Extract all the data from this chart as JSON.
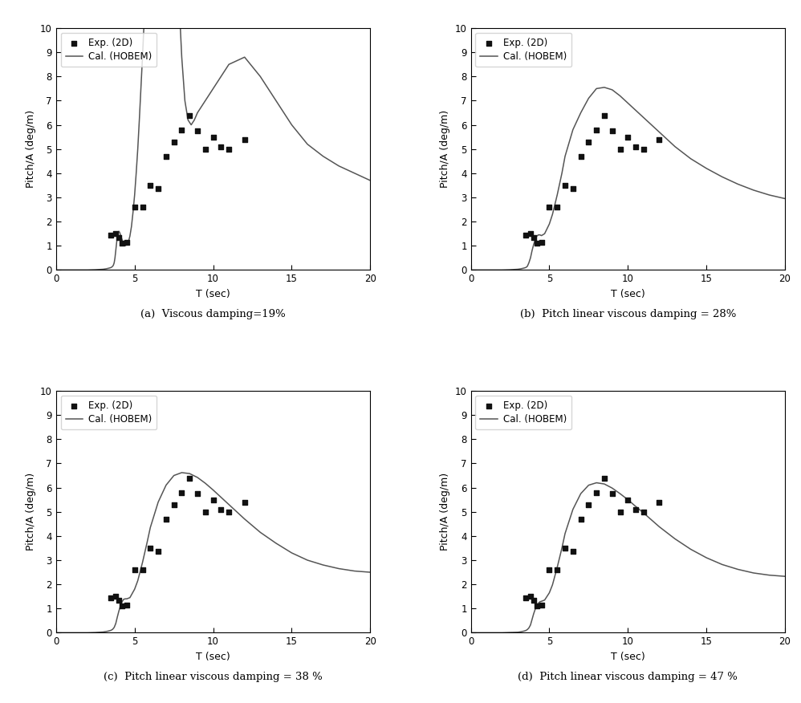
{
  "exp_x": [
    3.5,
    3.8,
    4.0,
    4.2,
    4.5,
    5.0,
    5.5,
    6.0,
    6.5,
    7.0,
    7.5,
    8.0,
    8.5,
    9.0,
    9.5,
    10.0,
    10.5,
    11.0,
    12.0
  ],
  "exp_y": [
    1.45,
    1.5,
    1.35,
    1.1,
    1.15,
    2.6,
    2.6,
    3.5,
    3.35,
    4.7,
    5.3,
    5.8,
    6.4,
    5.75,
    5.0,
    5.5,
    5.1,
    5.0,
    5.4
  ],
  "line_a_x": [
    0.1,
    0.5,
    1.0,
    1.5,
    2.0,
    2.5,
    3.0,
    3.2,
    3.4,
    3.5,
    3.6,
    3.65,
    3.7,
    3.75,
    3.8,
    3.85,
    3.9,
    3.95,
    4.0,
    4.05,
    4.1,
    4.15,
    4.2,
    4.3,
    4.4,
    4.5,
    4.6,
    4.7,
    4.8,
    4.9,
    5.0,
    5.1,
    5.2,
    5.3,
    5.4,
    5.5,
    5.6,
    5.7,
    5.8,
    5.9,
    6.0,
    6.2,
    6.4,
    6.6,
    6.8,
    7.0,
    7.2,
    7.4,
    7.6,
    7.8,
    8.0,
    8.2,
    8.4,
    8.6,
    8.8,
    9.0,
    10.0,
    11.0,
    12.0,
    13.0,
    14.0,
    15.0,
    16.0,
    17.0,
    18.0,
    19.0,
    20.0
  ],
  "line_a_y": [
    0.0,
    0.0,
    0.0,
    0.0,
    0.0,
    0.01,
    0.03,
    0.05,
    0.08,
    0.1,
    0.15,
    0.2,
    0.3,
    0.5,
    0.8,
    1.1,
    1.4,
    1.55,
    1.6,
    1.55,
    1.45,
    1.35,
    1.25,
    1.1,
    1.0,
    1.05,
    1.15,
    1.4,
    1.8,
    2.4,
    3.1,
    4.0,
    5.0,
    6.2,
    7.5,
    8.8,
    10.2,
    11.5,
    13.0,
    14.5,
    16.0,
    18.0,
    19.5,
    20.5,
    20.8,
    20.5,
    19.5,
    17.5,
    14.5,
    11.5,
    8.8,
    7.0,
    6.2,
    6.0,
    6.2,
    6.5,
    7.5,
    8.5,
    8.8,
    8.0,
    7.0,
    6.0,
    5.2,
    4.7,
    4.3,
    4.0,
    3.7
  ],
  "line_b_x": [
    0.1,
    0.5,
    1.0,
    1.5,
    2.0,
    2.5,
    3.0,
    3.2,
    3.4,
    3.5,
    3.6,
    3.7,
    3.8,
    3.9,
    4.0,
    4.1,
    4.2,
    4.3,
    4.4,
    4.5,
    4.7,
    5.0,
    5.2,
    5.5,
    5.8,
    6.0,
    6.5,
    7.0,
    7.5,
    8.0,
    8.5,
    9.0,
    9.5,
    10.0,
    10.5,
    11.0,
    12.0,
    13.0,
    14.0,
    15.0,
    16.0,
    17.0,
    18.0,
    19.0,
    20.0
  ],
  "line_b_y": [
    0.0,
    0.0,
    0.0,
    0.0,
    0.0,
    0.01,
    0.03,
    0.05,
    0.08,
    0.1,
    0.15,
    0.3,
    0.5,
    0.8,
    1.05,
    1.25,
    1.4,
    1.45,
    1.45,
    1.42,
    1.5,
    1.9,
    2.3,
    3.1,
    4.0,
    4.7,
    5.8,
    6.5,
    7.1,
    7.5,
    7.55,
    7.45,
    7.2,
    6.9,
    6.6,
    6.3,
    5.7,
    5.1,
    4.6,
    4.2,
    3.85,
    3.55,
    3.3,
    3.1,
    2.95
  ],
  "line_c_x": [
    0.1,
    0.5,
    1.0,
    1.5,
    2.0,
    2.5,
    3.0,
    3.2,
    3.4,
    3.5,
    3.6,
    3.7,
    3.8,
    3.9,
    4.0,
    4.1,
    4.2,
    4.3,
    4.4,
    4.5,
    4.7,
    5.0,
    5.2,
    5.5,
    5.8,
    6.0,
    6.5,
    7.0,
    7.5,
    8.0,
    8.5,
    9.0,
    9.5,
    10.0,
    10.5,
    11.0,
    12.0,
    13.0,
    14.0,
    15.0,
    16.0,
    17.0,
    18.0,
    19.0,
    20.0
  ],
  "line_c_y": [
    0.0,
    0.0,
    0.0,
    0.0,
    0.0,
    0.01,
    0.03,
    0.05,
    0.08,
    0.1,
    0.14,
    0.22,
    0.38,
    0.65,
    0.9,
    1.1,
    1.28,
    1.38,
    1.4,
    1.4,
    1.45,
    1.8,
    2.15,
    2.9,
    3.75,
    4.35,
    5.4,
    6.1,
    6.5,
    6.62,
    6.58,
    6.42,
    6.18,
    5.9,
    5.6,
    5.3,
    4.7,
    4.15,
    3.7,
    3.3,
    3.0,
    2.8,
    2.65,
    2.55,
    2.5
  ],
  "line_d_x": [
    0.1,
    0.5,
    1.0,
    1.5,
    2.0,
    2.5,
    3.0,
    3.2,
    3.4,
    3.5,
    3.6,
    3.7,
    3.8,
    3.9,
    4.0,
    4.1,
    4.2,
    4.3,
    4.4,
    4.5,
    4.7,
    5.0,
    5.2,
    5.5,
    5.8,
    6.0,
    6.5,
    7.0,
    7.5,
    8.0,
    8.5,
    9.0,
    9.5,
    10.0,
    10.5,
    11.0,
    12.0,
    13.0,
    14.0,
    15.0,
    16.0,
    17.0,
    18.0,
    19.0,
    20.0
  ],
  "line_d_y": [
    0.0,
    0.0,
    0.0,
    0.0,
    0.0,
    0.01,
    0.02,
    0.04,
    0.07,
    0.09,
    0.13,
    0.2,
    0.32,
    0.55,
    0.78,
    0.97,
    1.12,
    1.22,
    1.28,
    1.3,
    1.35,
    1.65,
    1.98,
    2.7,
    3.5,
    4.1,
    5.1,
    5.75,
    6.1,
    6.2,
    6.15,
    5.98,
    5.75,
    5.5,
    5.22,
    4.95,
    4.38,
    3.88,
    3.45,
    3.1,
    2.82,
    2.62,
    2.47,
    2.38,
    2.33
  ],
  "exp_d_x": [
    3.5,
    3.8,
    4.0,
    4.2,
    4.5,
    5.0,
    5.5,
    6.0,
    6.5,
    7.0,
    7.5,
    8.0,
    8.5,
    9.0,
    9.5,
    10.0,
    10.5,
    11.0,
    12.0
  ],
  "exp_d_y": [
    1.45,
    1.5,
    1.35,
    1.1,
    1.15,
    2.6,
    2.6,
    3.5,
    3.35,
    4.7,
    5.3,
    5.8,
    6.4,
    5.75,
    5.0,
    5.5,
    5.1,
    5.0,
    5.4
  ],
  "xlabel": "T (sec)",
  "ylabel": "Pitch/A (deg/m)",
  "xlim": [
    0,
    20
  ],
  "ylim": [
    0,
    10
  ],
  "xticks": [
    0,
    5,
    10,
    15,
    20
  ],
  "yticks": [
    0,
    1,
    2,
    3,
    4,
    5,
    6,
    7,
    8,
    9,
    10
  ],
  "legend_scatter": "Exp. (2D)",
  "legend_line": "Cal. (HOBEM)",
  "caption_a": "(a)  Viscous damping=19%",
  "caption_b": "(b)  Pitch linear viscous damping = 28%",
  "caption_c": "(c)  Pitch linear viscous damping = 38 %",
  "caption_d": "(d)  Pitch linear viscous damping = 47 %",
  "line_color": "#555555",
  "scatter_color": "#111111",
  "background_color": "#ffffff"
}
